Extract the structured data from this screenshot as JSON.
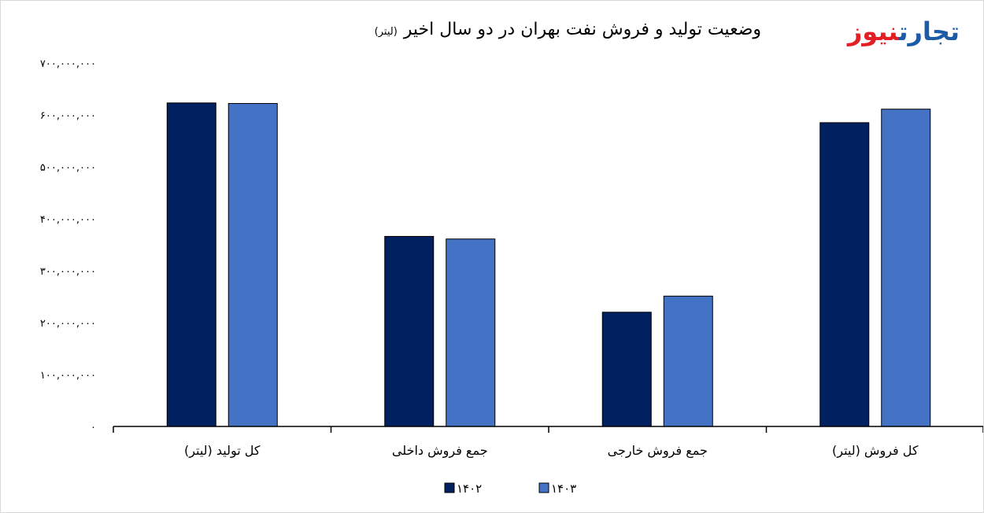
{
  "logo": {
    "part1": "تجارت",
    "part2": "نیوز",
    "color1": "#1c5ba6",
    "color2": "#e31e24"
  },
  "chart_data": {
    "type": "bar",
    "title": "وضعیت تولید و فروش نفت بهران در دو سال اخیر",
    "title_unit": "(لیتر)",
    "xlabel": "",
    "ylabel": "",
    "categories": [
      "کل تولید (لیتر)",
      "جمع فروش داخلی",
      "جمع فروش خارجی",
      "کل فروش (لیتر)"
    ],
    "series": [
      {
        "name": "۱۴۰۲",
        "color": "#002060",
        "values": [
          623000000,
          366000000,
          220000000,
          585000000
        ]
      },
      {
        "name": "۱۴۰۳",
        "color": "#4472c4",
        "values": [
          622000000,
          361000000,
          251000000,
          611000000
        ]
      }
    ],
    "ylim": [
      0,
      700000000
    ],
    "yticks": [
      0,
      100000000,
      200000000,
      300000000,
      400000000,
      500000000,
      600000000,
      700000000
    ],
    "ytick_labels": [
      "۰",
      "۱۰۰,۰۰۰,۰۰۰",
      "۲۰۰,۰۰۰,۰۰۰",
      "۳۰۰,۰۰۰,۰۰۰",
      "۴۰۰,۰۰۰,۰۰۰",
      "۵۰۰,۰۰۰,۰۰۰",
      "۶۰۰,۰۰۰,۰۰۰",
      "۷۰۰,۰۰۰,۰۰۰"
    ],
    "grid": false,
    "legend": "bottom-center"
  }
}
